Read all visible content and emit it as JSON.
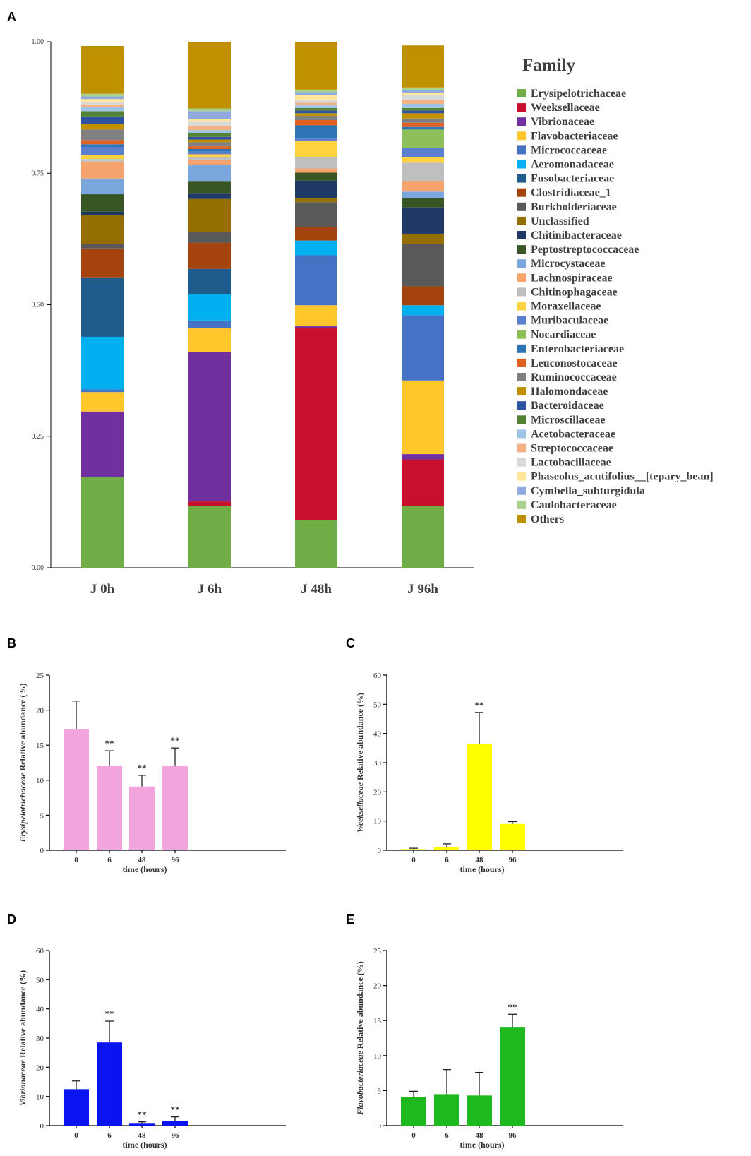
{
  "colors": {
    "pink": "#f2a5dc",
    "yellow": "#ffff00",
    "blue": "#0a14f0",
    "green": "#1eb91e",
    "axis": "#000000",
    "tick_text": "#333333"
  },
  "chart_data": [
    {
      "panel": "A",
      "type": "bar",
      "stacked": true,
      "categories": [
        "J 0h",
        "J 6h",
        "J 48h",
        "J 96h"
      ],
      "ylim": [
        0,
        1
      ],
      "yticks": [
        "0.00",
        "0.25",
        "0.50",
        "0.75",
        "1.00"
      ],
      "legend_title": "Family",
      "series": [
        {
          "name": "Erysipelotrichaceae",
          "color": "#70ad47",
          "values": [
            0.172,
            0.118,
            0.09,
            0.118
          ]
        },
        {
          "name": "Weeksellaceae",
          "color": "#c8102e",
          "values": [
            0,
            0.008,
            0.365,
            0.088
          ]
        },
        {
          "name": "Vibrionaceae",
          "color": "#7030a0",
          "values": [
            0.125,
            0.284,
            0.004,
            0.01
          ]
        },
        {
          "name": "Flavobacteriaceae",
          "color": "#ffc72c",
          "values": [
            0.037,
            0.045,
            0.04,
            0.14
          ]
        },
        {
          "name": "Micrococcaceae",
          "color": "#4472c4",
          "values": [
            0.005,
            0.015,
            0.095,
            0.124
          ]
        },
        {
          "name": "Aeromonadaceae",
          "color": "#00b0f0",
          "values": [
            0.1,
            0.05,
            0.028,
            0.019
          ]
        },
        {
          "name": "Fusobacteriaceae",
          "color": "#1f5c8b",
          "values": [
            0.113,
            0.048,
            0,
            0
          ]
        },
        {
          "name": "Clostridiaceae_1",
          "color": "#a5430f",
          "values": [
            0.055,
            0.05,
            0.025,
            0.036
          ]
        },
        {
          "name": "Burkholderiaceae",
          "color": "#595959",
          "values": [
            0.008,
            0.02,
            0.048,
            0.08
          ]
        },
        {
          "name": "Unclassified",
          "color": "#946f00",
          "values": [
            0.055,
            0.063,
            0.008,
            0.02
          ]
        },
        {
          "name": "Chitinibacteraceae",
          "color": "#1f3864",
          "values": [
            0.007,
            0.01,
            0.033,
            0.05
          ]
        },
        {
          "name": "Peptostreptococcaceae",
          "color": "#375623",
          "values": [
            0.033,
            0.023,
            0.015,
            0.018
          ]
        },
        {
          "name": "Microcystaceae",
          "color": "#7ba7dc",
          "values": [
            0.03,
            0.032,
            0,
            0.012
          ]
        },
        {
          "name": "Lachnospiraceae",
          "color": "#f4a46c",
          "values": [
            0.032,
            0.01,
            0.008,
            0.02
          ]
        },
        {
          "name": "Chitinophagaceae",
          "color": "#bfbfbf",
          "values": [
            0.005,
            0.005,
            0.022,
            0.035
          ]
        },
        {
          "name": "Moraxellaceae",
          "color": "#ffd23f",
          "values": [
            0.008,
            0.005,
            0.03,
            0.01
          ]
        },
        {
          "name": "Muribaculaceae",
          "color": "#5b7fd0",
          "values": [
            0.015,
            0.005,
            0.005,
            0.018
          ]
        },
        {
          "name": "Nocardiaceae",
          "color": "#8fbf5a",
          "values": [
            0,
            0,
            0,
            0.035
          ]
        },
        {
          "name": "Enterobacteriaceae",
          "color": "#2e75b6",
          "values": [
            0.005,
            0.005,
            0.025,
            0.005
          ]
        },
        {
          "name": "Leuconostocaceae",
          "color": "#e06020",
          "values": [
            0.008,
            0.005,
            0.01,
            0.008
          ]
        },
        {
          "name": "Ruminococcaceae",
          "color": "#808080",
          "values": [
            0.02,
            0.008,
            0.008,
            0.008
          ]
        },
        {
          "name": "Halomondaceae",
          "color": "#c09000",
          "values": [
            0.01,
            0.005,
            0.005,
            0.01
          ]
        },
        {
          "name": "Bacteroidaceae",
          "color": "#2f52a0",
          "values": [
            0.015,
            0.005,
            0.005,
            0.005
          ]
        },
        {
          "name": "Microscillaceae",
          "color": "#548235",
          "values": [
            0.01,
            0.008,
            0.005,
            0.005
          ]
        },
        {
          "name": "Acetobacteraceae",
          "color": "#9dc3e6",
          "values": [
            0.008,
            0.005,
            0.005,
            0.008
          ]
        },
        {
          "name": "Streptococcaceae",
          "color": "#f4b183",
          "values": [
            0.005,
            0.008,
            0.005,
            0.008
          ]
        },
        {
          "name": "Lactobacillaceae",
          "color": "#d9d9d9",
          "values": [
            0.005,
            0.008,
            0.005,
            0.008
          ]
        },
        {
          "name": "Phaseolus_acutifolius__[tepary_bean]",
          "color": "#ffe699",
          "values": [
            0.005,
            0.005,
            0.01,
            0.005
          ]
        },
        {
          "name": "Cymbella_subturgidula",
          "color": "#8faadc",
          "values": [
            0.005,
            0.015,
            0.005,
            0.005
          ]
        },
        {
          "name": "Caulobacteraceae",
          "color": "#a9d18e",
          "values": [
            0.005,
            0.005,
            0.005,
            0.005
          ]
        },
        {
          "name": "Others",
          "color": "#bf9000",
          "values": [
            0.091,
            0.131,
            0.091,
            0.08
          ]
        }
      ]
    },
    {
      "panel": "B",
      "type": "bar",
      "categories": [
        "0",
        "6",
        "48",
        "96"
      ],
      "values": [
        17.3,
        12.0,
        9.1,
        12.0
      ],
      "errors": [
        4.0,
        2.2,
        1.6,
        2.6
      ],
      "significance": [
        "",
        "**",
        "**",
        "**"
      ],
      "ylim": [
        0,
        25
      ],
      "yticks": [
        "0",
        "5",
        "10",
        "15",
        "20",
        "25"
      ],
      "ylabel_taxon": "Erysipelotrichaceae",
      "ylabel": "Relative abundance (%)",
      "xlabel": "time (hours)",
      "color_key": "pink"
    },
    {
      "panel": "C",
      "type": "bar",
      "categories": [
        "0",
        "6",
        "48",
        "96"
      ],
      "values": [
        0.4,
        1.0,
        36.5,
        9.0
      ],
      "errors": [
        0.3,
        1.2,
        10.7,
        0.8
      ],
      "significance": [
        "",
        "",
        "**",
        ""
      ],
      "ylim": [
        0,
        60
      ],
      "yticks": [
        "0",
        "10",
        "20",
        "30",
        "40",
        "50",
        "60"
      ],
      "ylabel_taxon": "Weeksellaceae",
      "ylabel": "Relative abundance (%)",
      "xlabel": "time (hours)",
      "color_key": "yellow"
    },
    {
      "panel": "D",
      "type": "bar",
      "categories": [
        "0",
        "6",
        "48",
        "96"
      ],
      "values": [
        12.5,
        28.5,
        0.9,
        1.5
      ],
      "errors": [
        2.8,
        7.3,
        0.4,
        1.5
      ],
      "significance": [
        "",
        "**",
        "**",
        "**"
      ],
      "ylim": [
        0,
        60
      ],
      "yticks": [
        "0",
        "10",
        "20",
        "30",
        "40",
        "50",
        "60"
      ],
      "ylabel_taxon": "Vibrionaceae",
      "ylabel": "Relative abundance (%)",
      "xlabel": "time (hours)",
      "color_key": "blue"
    },
    {
      "panel": "E",
      "type": "bar",
      "categories": [
        "0",
        "6",
        "48",
        "96"
      ],
      "values": [
        4.1,
        4.5,
        4.3,
        14.0
      ],
      "errors": [
        0.8,
        3.5,
        3.3,
        1.9
      ],
      "significance": [
        "",
        "",
        "",
        "**"
      ],
      "ylim": [
        0,
        25
      ],
      "yticks": [
        "0",
        "5",
        "10",
        "15",
        "20",
        "25"
      ],
      "ylabel_taxon": "Flavobacteriaceae",
      "ylabel": "Relative abundance (%)",
      "xlabel": "time (hours)",
      "color_key": "green"
    }
  ]
}
